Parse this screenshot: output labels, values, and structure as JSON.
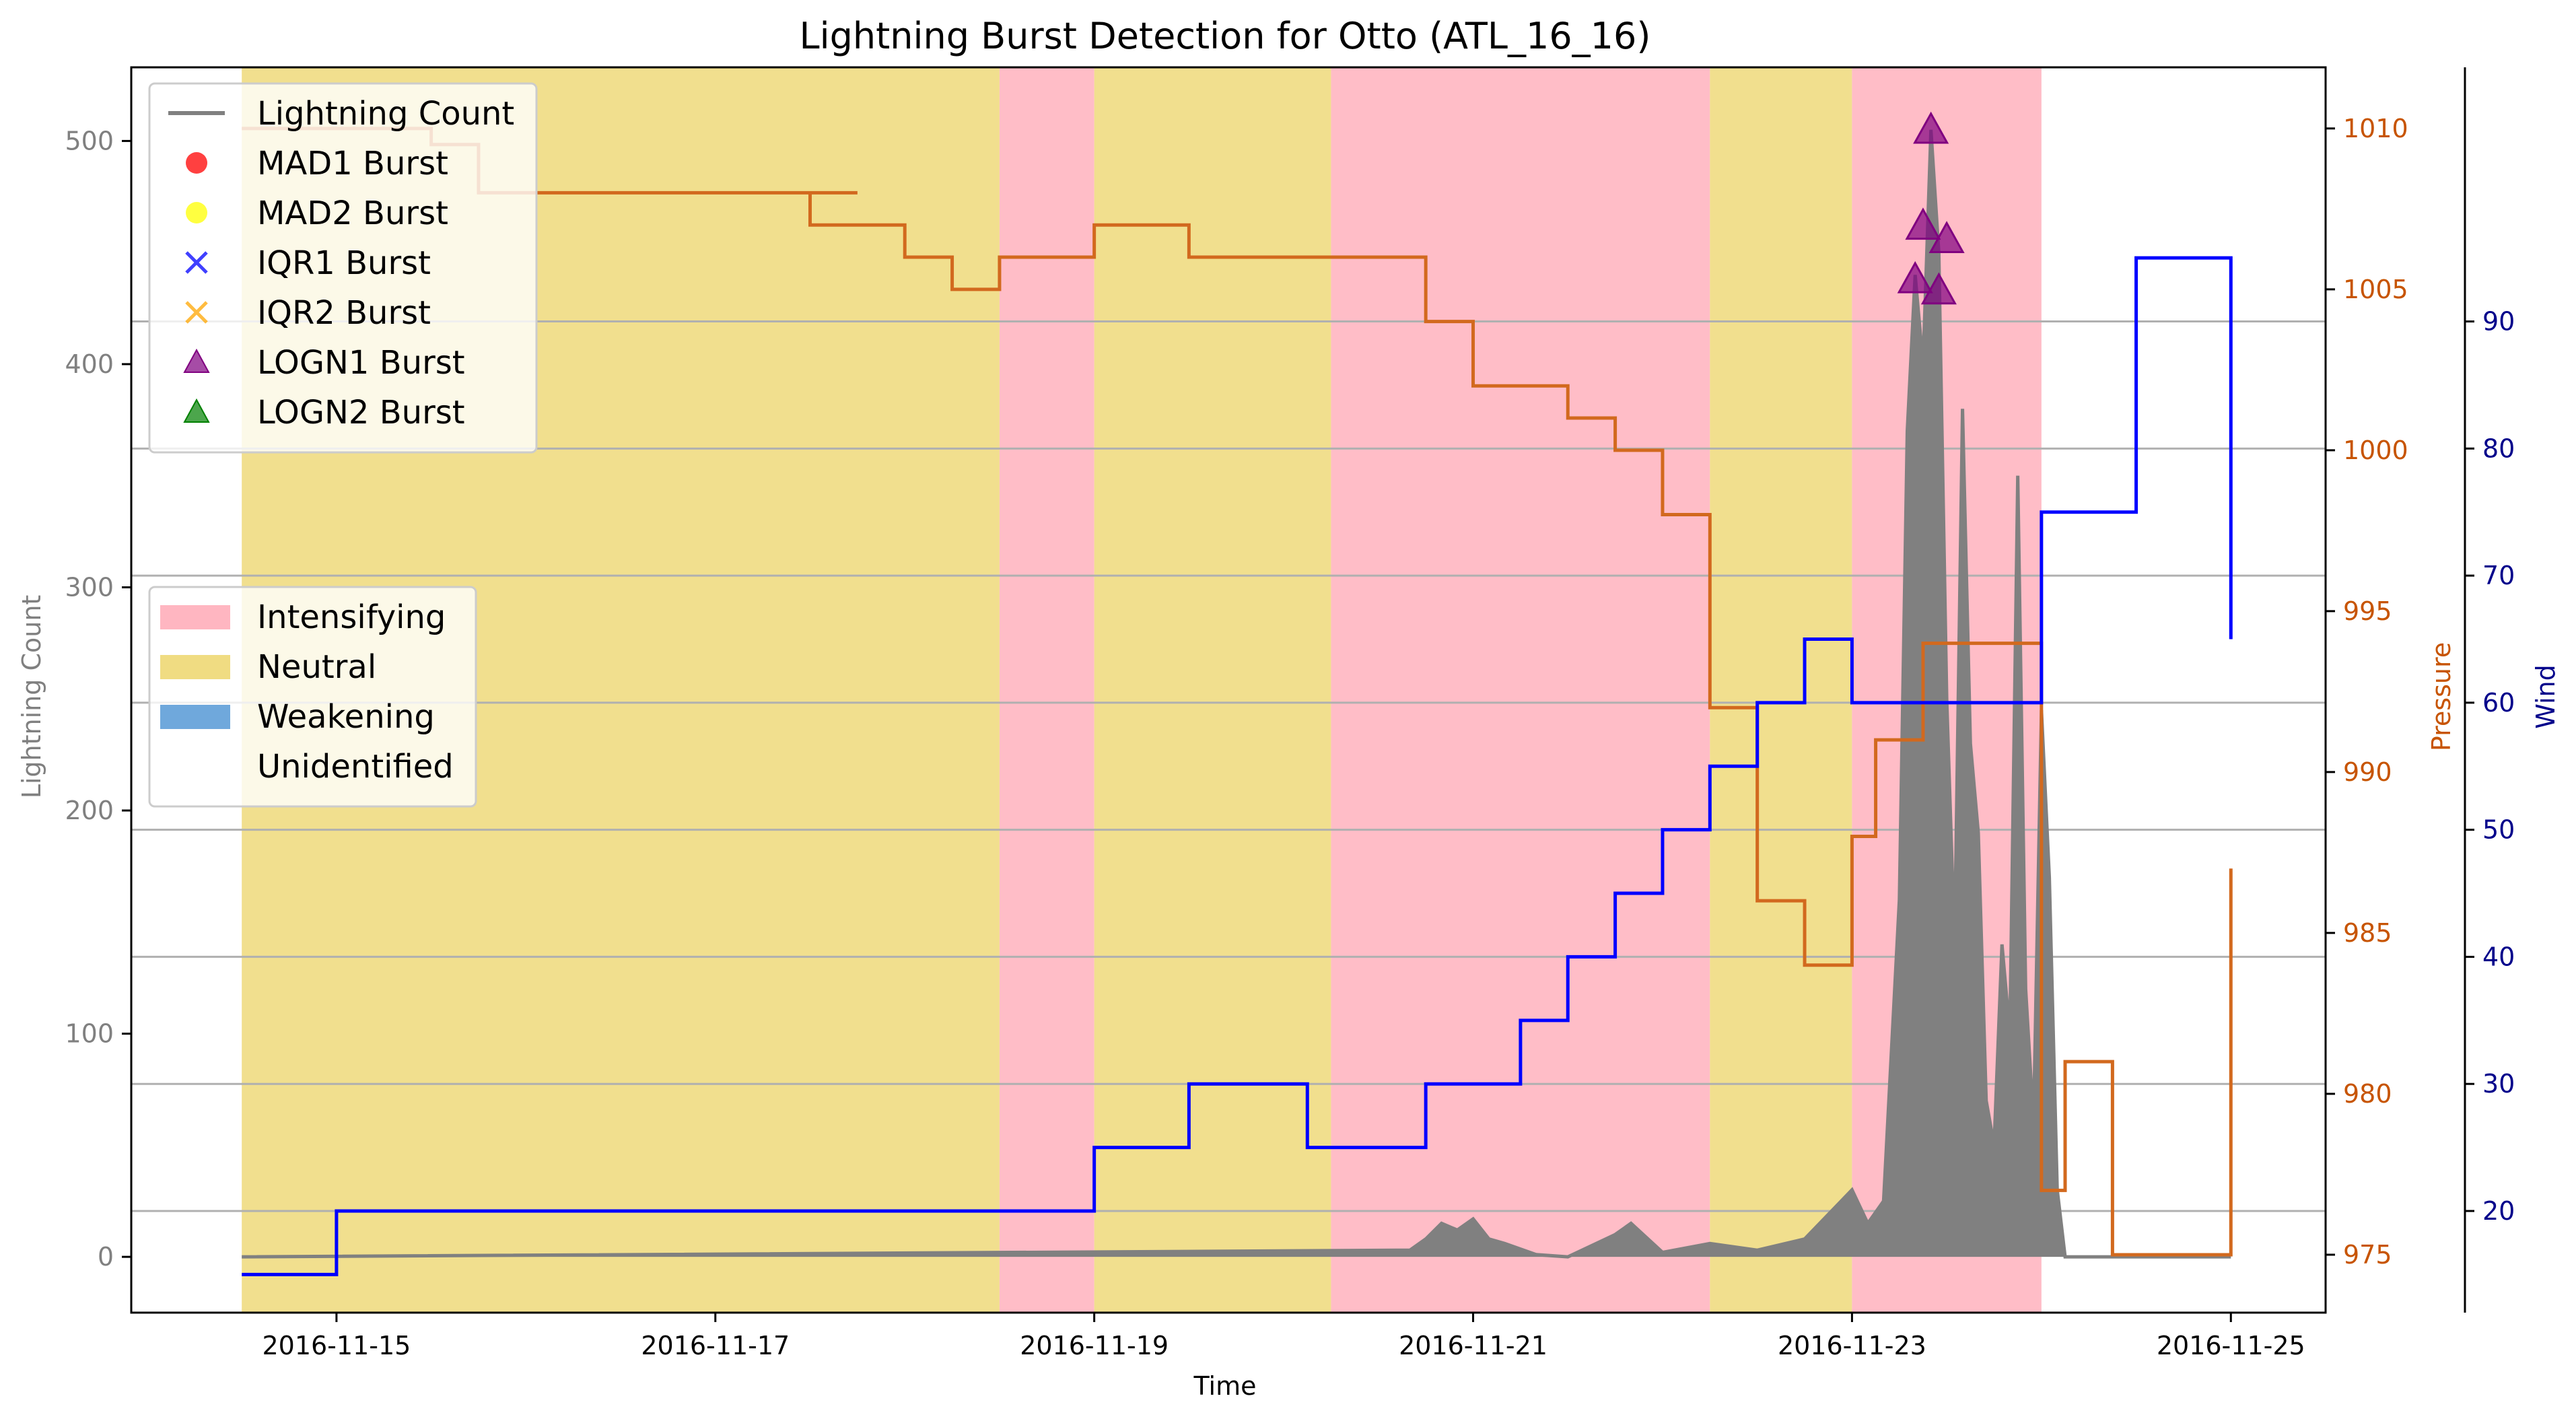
{
  "chart_data": {
    "type": "line",
    "title": "Lightning Burst Detection for Otto (ATL_16_16)",
    "xlabel": "Time",
    "ylabel_left": "Lightning Count",
    "ylabel_pressure": "Pressure",
    "ylabel_wind": "Wind",
    "x_range": [
      "2016-11-13T22:00",
      "2016-11-25T12:00"
    ],
    "x_ticks": [
      "2016-11-15",
      "2016-11-17",
      "2016-11-19",
      "2016-11-21",
      "2016-11-23",
      "2016-11-25"
    ],
    "ylim_left": [
      -25,
      533
    ],
    "yticks_left": [
      0,
      100,
      200,
      300,
      400,
      500
    ],
    "ylim_pressure": [
      973.2,
      1011.9
    ],
    "yticks_pressure": [
      975,
      980,
      985,
      990,
      995,
      1000,
      1005,
      1010
    ],
    "ylim_wind": [
      12,
      110
    ],
    "yticks_wind": [
      20,
      30,
      40,
      50,
      60,
      70,
      80,
      90
    ],
    "grid": "horizontal lines at wind ticks",
    "colors": {
      "lightning": "#808080",
      "pressure": "#d2691e",
      "wind": "#0000ff",
      "intensifying": "#ffb6c1",
      "neutral": "#f0dc82",
      "weakening": "#6fa8dc",
      "unidentified": "#ffffff",
      "pressure_axis": "#c75400",
      "wind_axis": "#00008b",
      "left_axis": "#808080",
      "logn1": "#800080"
    },
    "phases": [
      {
        "start": "2016-11-14T12:00",
        "end": "2016-11-18T12:00",
        "phase": "Neutral"
      },
      {
        "start": "2016-11-18T12:00",
        "end": "2016-11-19T00:00",
        "phase": "Intensifying"
      },
      {
        "start": "2016-11-19T00:00",
        "end": "2016-11-20T06:00",
        "phase": "Neutral"
      },
      {
        "start": "2016-11-20T06:00",
        "end": "2016-11-22T06:00",
        "phase": "Intensifying"
      },
      {
        "start": "2016-11-22T06:00",
        "end": "2016-11-23T00:00",
        "phase": "Neutral"
      },
      {
        "start": "2016-11-23T00:00",
        "end": "2016-11-24T00:00",
        "phase": "Intensifying"
      }
    ],
    "pressure_series": [
      {
        "x": "2016-11-14T12:00",
        "y": 1010
      },
      {
        "x": "2016-11-15T00:00",
        "y": 1010
      },
      {
        "x": "2016-11-15T06:00",
        "y": 1010
      },
      {
        "x": "2016-11-15T12:00",
        "y": 1009.5
      },
      {
        "x": "2016-11-15T18:00",
        "y": 1008
      },
      {
        "x": "2016-11-16T00:00",
        "y": 1008
      },
      {
        "x": "2016-11-17T00:00",
        "y": 1008
      },
      {
        "x": "2016-11-17T18:00",
        "y": 1008
      },
      {
        "x": "2016-11-17T12:00",
        "y": 1007
      },
      {
        "x": "2016-11-18T00:00",
        "y": 1006
      },
      {
        "x": "2016-11-18T06:00",
        "y": 1005
      },
      {
        "x": "2016-11-18T12:00",
        "y": 1006
      },
      {
        "x": "2016-11-19T00:00",
        "y": 1007
      },
      {
        "x": "2016-11-19T12:00",
        "y": 1006
      },
      {
        "x": "2016-11-20T00:00",
        "y": 1006
      },
      {
        "x": "2016-11-20T12:00",
        "y": 1006
      },
      {
        "x": "2016-11-20T18:00",
        "y": 1004
      },
      {
        "x": "2016-11-21T00:00",
        "y": 1002
      },
      {
        "x": "2016-11-21T12:00",
        "y": 1001
      },
      {
        "x": "2016-11-21T18:00",
        "y": 1000
      },
      {
        "x": "2016-11-22T00:00",
        "y": 998
      },
      {
        "x": "2016-11-22T06:00",
        "y": 992
      },
      {
        "x": "2016-11-22T12:00",
        "y": 986
      },
      {
        "x": "2016-11-22T18:00",
        "y": 984
      },
      {
        "x": "2016-11-23T00:00",
        "y": 988
      },
      {
        "x": "2016-11-23T03:00",
        "y": 991
      },
      {
        "x": "2016-11-23T09:00",
        "y": 994
      },
      {
        "x": "2016-11-24T00:00",
        "y": 977
      },
      {
        "x": "2016-11-24T03:00",
        "y": 981
      },
      {
        "x": "2016-11-24T09:00",
        "y": 975
      },
      {
        "x": "2016-11-25T00:00",
        "y": 987
      }
    ],
    "wind_series": [
      {
        "x": "2016-11-14T12:00",
        "y": 15
      },
      {
        "x": "2016-11-15T00:00",
        "y": 20
      },
      {
        "x": "2016-11-19T00:00",
        "y": 25
      },
      {
        "x": "2016-11-19T12:00",
        "y": 30
      },
      {
        "x": "2016-11-20T03:00",
        "y": 25
      },
      {
        "x": "2016-11-20T18:00",
        "y": 30
      },
      {
        "x": "2016-11-21T06:00",
        "y": 35
      },
      {
        "x": "2016-11-21T12:00",
        "y": 40
      },
      {
        "x": "2016-11-21T18:00",
        "y": 45
      },
      {
        "x": "2016-11-22T00:00",
        "y": 50
      },
      {
        "x": "2016-11-22T06:00",
        "y": 55
      },
      {
        "x": "2016-11-22T12:00",
        "y": 60
      },
      {
        "x": "2016-11-22T18:00",
        "y": 65
      },
      {
        "x": "2016-11-23T00:00",
        "y": 60
      },
      {
        "x": "2016-11-24T00:00",
        "y": 75
      },
      {
        "x": "2016-11-24T12:00",
        "y": 95
      },
      {
        "x": "2016-11-25T00:00",
        "y": 65
      }
    ],
    "lightning_count": [
      {
        "x": "2016-11-14T12:00",
        "y": 0
      },
      {
        "x": "2016-11-20T16:00",
        "y": 3
      },
      {
        "x": "2016-11-20T18:00",
        "y": 8
      },
      {
        "x": "2016-11-20T20:00",
        "y": 15
      },
      {
        "x": "2016-11-20T22:00",
        "y": 12
      },
      {
        "x": "2016-11-21T00:00",
        "y": 17
      },
      {
        "x": "2016-11-21T02:00",
        "y": 8
      },
      {
        "x": "2016-11-21T04:00",
        "y": 6
      },
      {
        "x": "2016-11-21T08:00",
        "y": 1
      },
      {
        "x": "2016-11-21T12:00",
        "y": 0
      },
      {
        "x": "2016-11-21T18:00",
        "y": 10
      },
      {
        "x": "2016-11-21T20:00",
        "y": 15
      },
      {
        "x": "2016-11-22T00:00",
        "y": 2
      },
      {
        "x": "2016-11-22T06:00",
        "y": 6
      },
      {
        "x": "2016-11-22T12:00",
        "y": 3
      },
      {
        "x": "2016-11-22T18:00",
        "y": 8
      },
      {
        "x": "2016-11-23T00:00",
        "y": 30
      },
      {
        "x": "2016-11-23T02:00",
        "y": 15
      },
      {
        "x": "2016-11-23T04:00",
        "y": 25
      },
      {
        "x": "2016-11-23T06:00",
        "y": 160
      },
      {
        "x": "2016-11-23T07:00",
        "y": 370
      },
      {
        "x": "2016-11-23T08:00",
        "y": 440
      },
      {
        "x": "2016-11-23T09:00",
        "y": 400
      },
      {
        "x": "2016-11-23T10:00",
        "y": 505
      },
      {
        "x": "2016-11-23T11:00",
        "y": 450
      },
      {
        "x": "2016-11-23T12:00",
        "y": 250
      },
      {
        "x": "2016-11-23T13:00",
        "y": 140
      },
      {
        "x": "2016-11-23T14:00",
        "y": 380
      },
      {
        "x": "2016-11-23T15:00",
        "y": 230
      },
      {
        "x": "2016-11-23T16:00",
        "y": 190
      },
      {
        "x": "2016-11-23T17:00",
        "y": 70
      },
      {
        "x": "2016-11-23T18:00",
        "y": 50
      },
      {
        "x": "2016-11-23T19:00",
        "y": 140
      },
      {
        "x": "2016-11-23T20:00",
        "y": 100
      },
      {
        "x": "2016-11-23T21:00",
        "y": 350
      },
      {
        "x": "2016-11-23T22:00",
        "y": 120
      },
      {
        "x": "2016-11-23T23:00",
        "y": 60
      },
      {
        "x": "2016-11-24T00:00",
        "y": 245
      },
      {
        "x": "2016-11-24T01:00",
        "y": 170
      },
      {
        "x": "2016-11-24T02:00",
        "y": 30
      },
      {
        "x": "2016-11-24T03:00",
        "y": 0
      },
      {
        "x": "2016-11-25T00:00",
        "y": 0
      }
    ],
    "bursts": [
      {
        "x": "2016-11-23T08:00",
        "y": 438,
        "detector": "LOGN1"
      },
      {
        "x": "2016-11-23T09:00",
        "y": 462,
        "detector": "LOGN1"
      },
      {
        "x": "2016-11-23T10:00",
        "y": 505,
        "detector": "LOGN1"
      },
      {
        "x": "2016-11-23T11:00",
        "y": 433,
        "detector": "LOGN1"
      },
      {
        "x": "2016-11-23T12:00",
        "y": 456,
        "detector": "LOGN1"
      }
    ],
    "legend_series": [
      {
        "label": "Lightning Count",
        "symbol": "line",
        "color": "#808080"
      },
      {
        "label": "MAD1 Burst",
        "symbol": "circle",
        "color": "#ff0000"
      },
      {
        "label": "MAD2 Burst",
        "symbol": "circle",
        "color": "#ffff00"
      },
      {
        "label": "IQR1 Burst",
        "symbol": "x",
        "color": "#0000ff"
      },
      {
        "label": "IQR2 Burst",
        "symbol": "x",
        "color": "#ffa500"
      },
      {
        "label": "LOGN1 Burst",
        "symbol": "triangle",
        "color": "#800080"
      },
      {
        "label": "LOGN2 Burst",
        "symbol": "triangle",
        "color": "#008000"
      }
    ],
    "legend_phases": [
      {
        "label": "Intensifying",
        "color": "#ffb6c1"
      },
      {
        "label": "Neutral",
        "color": "#f0dc82"
      },
      {
        "label": "Weakening",
        "color": "#6fa8dc"
      },
      {
        "label": "Unidentified",
        "color": "#ffffff"
      }
    ]
  }
}
